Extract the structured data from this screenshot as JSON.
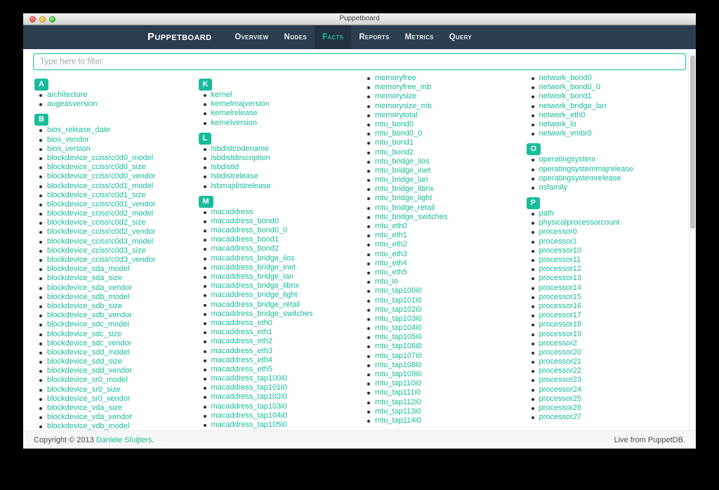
{
  "colors": {
    "accent": "#18bc9c",
    "navbar": "#2c3e50"
  },
  "window": {
    "title": "Puppetboard"
  },
  "navbar": {
    "brand": "Puppetboard",
    "items": [
      {
        "label": "Overview",
        "active": false
      },
      {
        "label": "Nodes",
        "active": false
      },
      {
        "label": "Facts",
        "active": true
      },
      {
        "label": "Reports",
        "active": false
      },
      {
        "label": "Metrics",
        "active": false
      },
      {
        "label": "Query",
        "active": false
      }
    ]
  },
  "filter": {
    "placeholder": "Type here to filter",
    "value": ""
  },
  "facts": {
    "columns": [
      {
        "blocks": [
          {
            "letter": "A",
            "items": [
              "architecture",
              "augeasversion"
            ]
          },
          {
            "letter": "B",
            "items": [
              "bios_release_date",
              "bios_vendor",
              "bios_version",
              "blockdevice_cciss!c0d0_model",
              "blockdevice_cciss!c0d0_size",
              "blockdevice_cciss!c0d0_vendor",
              "blockdevice_cciss!c0d1_model",
              "blockdevice_cciss!c0d1_size",
              "blockdevice_cciss!c0d1_vendor",
              "blockdevice_cciss!c0d2_model",
              "blockdevice_cciss!c0d2_size",
              "blockdevice_cciss!c0d2_vendor",
              "blockdevice_cciss!c0d3_model",
              "blockdevice_cciss!c0d3_size",
              "blockdevice_cciss!c0d3_vendor",
              "blockdevice_sda_model",
              "blockdevice_sda_size",
              "blockdevice_sda_vendor",
              "blockdevice_sdb_model",
              "blockdevice_sdb_size",
              "blockdevice_sdb_vendor",
              "blockdevice_sdc_model",
              "blockdevice_sdc_size",
              "blockdevice_sdc_vendor",
              "blockdevice_sdd_model",
              "blockdevice_sdd_size",
              "blockdevice_sdd_vendor",
              "blockdevice_sr0_model",
              "blockdevice_sr0_size",
              "blockdevice_sr0_vendor",
              "blockdevice_vda_size",
              "blockdevice_vda_vendor",
              "blockdevice_vdb_model"
            ]
          }
        ]
      },
      {
        "blocks": [
          {
            "letter": "K",
            "items": [
              "kernel",
              "kernelmajversion",
              "kernelrelease",
              "kernelversion"
            ]
          },
          {
            "letter": "L",
            "items": [
              "lsbdistcodename",
              "lsbdistdescription",
              "lsbdistid",
              "lsbdistrelease",
              "lsbmajdistrelease"
            ]
          },
          {
            "letter": "M",
            "items": [
              "macaddress",
              "macaddress_bond0",
              "macaddress_bond0_0",
              "macaddress_bond1",
              "macaddress_bond2",
              "macaddress_bridge_ilos",
              "macaddress_bridge_inet",
              "macaddress_bridge_lan",
              "macaddress_bridge_librix",
              "macaddress_bridge_light",
              "macaddress_bridge_retail",
              "macaddress_bridge_switches",
              "macaddress_eth0",
              "macaddress_eth1",
              "macaddress_eth2",
              "macaddress_eth3",
              "macaddress_eth4",
              "macaddress_eth5",
              "macaddress_tap100i0",
              "macaddress_tap101i0",
              "macaddress_tap102i0",
              "macaddress_tap103i0",
              "macaddress_tap104i0",
              "macaddress_tap105i0"
            ]
          }
        ]
      },
      {
        "blocks": [
          {
            "letter": null,
            "items": [
              "memoryfree",
              "memoryfree_mb",
              "memorysize",
              "memorysize_mb",
              "memorytotal",
              "mtu_bond0",
              "mtu_bond0_0",
              "mtu_bond1",
              "mtu_bond2",
              "mtu_bridge_ilos",
              "mtu_bridge_inet",
              "mtu_bridge_lan",
              "mtu_bridge_librix",
              "mtu_bridge_light",
              "mtu_bridge_retail",
              "mtu_bridge_switches",
              "mtu_eth0",
              "mtu_eth1",
              "mtu_eth2",
              "mtu_eth3",
              "mtu_eth4",
              "mtu_eth5",
              "mtu_lo",
              "mtu_tap100i0",
              "mtu_tap101i0",
              "mtu_tap102i0",
              "mtu_tap103i0",
              "mtu_tap104i0",
              "mtu_tap105i0",
              "mtu_tap106i0",
              "mtu_tap107i0",
              "mtu_tap108i0",
              "mtu_tap109i0",
              "mtu_tap110i0",
              "mtu_tap111i0",
              "mtu_tap112i0",
              "mtu_tap113i0",
              "mtu_tap114i0"
            ]
          }
        ]
      },
      {
        "blocks": [
          {
            "letter": null,
            "items": [
              "network_bond0",
              "network_bond0_0",
              "network_bond1",
              "network_bridge_lan",
              "network_eth0",
              "network_lo",
              "network_vmbr0"
            ]
          },
          {
            "letter": "O",
            "items": [
              "operatingsystem",
              "operatingsystemmajrelease",
              "operatingsystemrelease",
              "osfamily"
            ]
          },
          {
            "letter": "P",
            "items": [
              "path",
              "physicalprocessorcount",
              "processor0",
              "processor1",
              "processor10",
              "processor11",
              "processor12",
              "processor13",
              "processor14",
              "processor15",
              "processor16",
              "processor17",
              "processor18",
              "processor19",
              "processor2",
              "processor20",
              "processor21",
              "processor22",
              "processor23",
              "processor24",
              "processor25",
              "processor26",
              "processor27"
            ]
          }
        ]
      }
    ]
  },
  "footer": {
    "copyright_prefix": "Copyright © 2013 ",
    "author_link": "Daniele Sluijters",
    "copyright_suffix": ".",
    "live_status": "Live from PuppetDB."
  }
}
